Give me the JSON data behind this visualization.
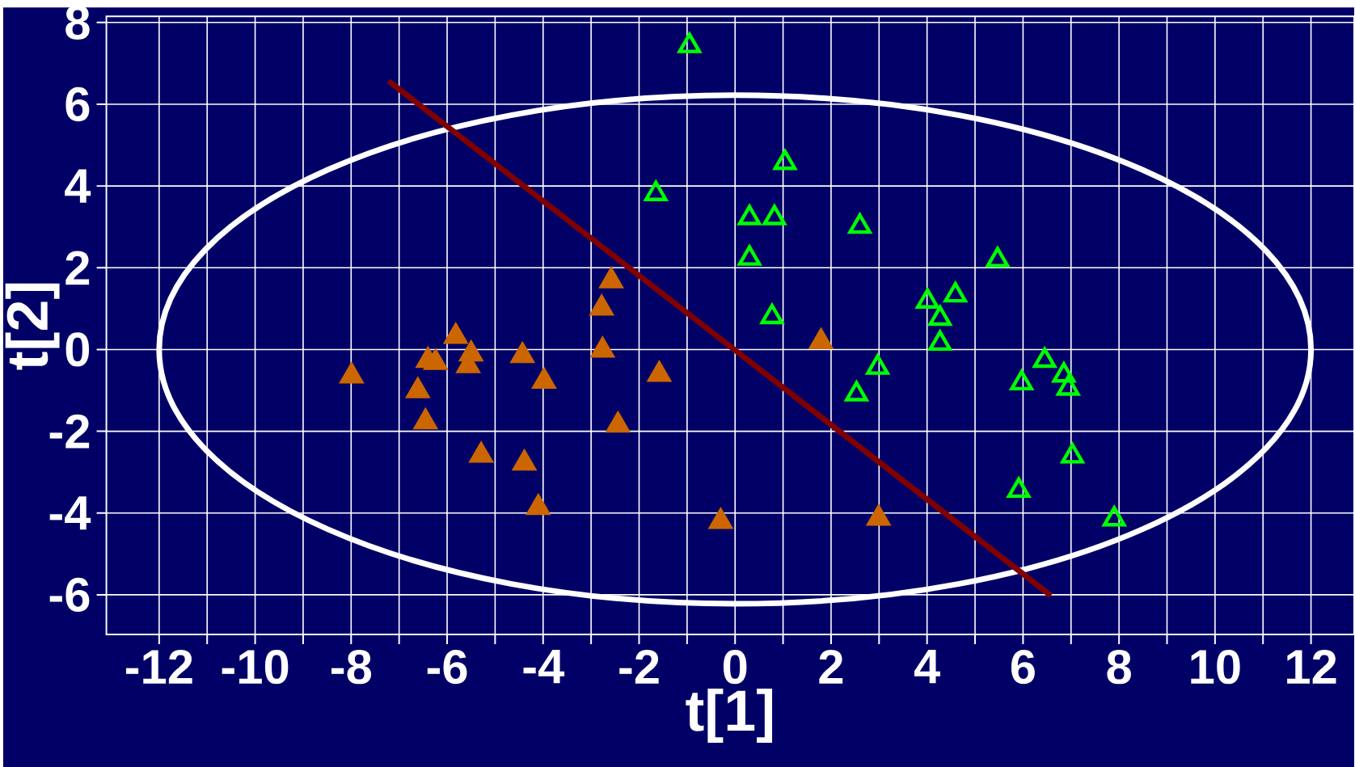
{
  "chart_data": {
    "type": "scatter",
    "xlabel": "t[1]",
    "ylabel": "t[2]",
    "xlim": [
      -13.1,
      12.9
    ],
    "ylim": [
      -6.97,
      8.15
    ],
    "xticks": [
      -12,
      {
        "value": -11,
        "label": null
      },
      -10,
      {
        "value": -9,
        "label": null
      },
      -8,
      {
        "value": -7,
        "label": null
      },
      -6,
      {
        "value": -5,
        "label": null
      },
      -4,
      {
        "value": -3,
        "label": null
      },
      -2,
      {
        "value": -1,
        "label": null
      },
      0,
      {
        "value": 1,
        "label": null
      },
      2,
      {
        "value": 3,
        "label": null
      },
      4,
      {
        "value": 5,
        "label": null
      },
      6,
      {
        "value": 7,
        "label": null
      },
      8,
      {
        "value": 9,
        "label": null
      },
      10,
      {
        "value": 11,
        "label": null
      },
      12
    ],
    "yticks": [
      -6,
      -4,
      -2,
      0,
      2,
      4,
      6,
      8
    ],
    "grid": true,
    "marker": "triangle",
    "series": [
      {
        "type": "scatter",
        "color": "#cc6600",
        "x": [
          -7.99,
          -6.61,
          -6.45,
          -6.4,
          -6.24,
          -5.82,
          -5.56,
          -5.5,
          -5.29,
          -4.43,
          -4.39,
          -4.1,
          -3.98,
          -2.78,
          -2.76,
          -2.58,
          -2.44,
          -1.58,
          -0.3,
          1.79,
          2.99
        ],
        "values": [
          -0.65,
          -1.01,
          -1.77,
          -0.27,
          -0.32,
          0.32,
          -0.4,
          -0.11,
          -2.59,
          -0.15,
          -2.78,
          -3.87,
          -0.78,
          1.01,
          -0.02,
          1.68,
          -1.85,
          -0.61,
          -4.21,
          0.19,
          -4.13
        ]
      },
      {
        "type": "scatter",
        "color": "#00ff00",
        "x": [
          -0.95,
          -1.65,
          0.3,
          0.82,
          1.04,
          0.3,
          0.77,
          2.6,
          2.53,
          2.97,
          4.01,
          4.27,
          4.27,
          4.59,
          5.47,
          5.97,
          5.91,
          6.45,
          6.85,
          6.94,
          7.03,
          7.9
        ],
        "values": [
          7.43,
          3.81,
          3.22,
          3.22,
          4.57,
          2.23,
          0.8,
          3.01,
          -1.09,
          -0.44,
          1.18,
          0.76,
          0.15,
          1.33,
          2.19,
          -0.82,
          -3.45,
          -0.27,
          -0.63,
          -0.95,
          -2.61,
          -4.15
        ]
      },
      {
        "type": "line",
        "color": "#800000",
        "marker": "none",
        "x": [
          -7.22,
          6.58
        ],
        "values": [
          6.57,
          -6.02
        ]
      }
    ]
  }
}
